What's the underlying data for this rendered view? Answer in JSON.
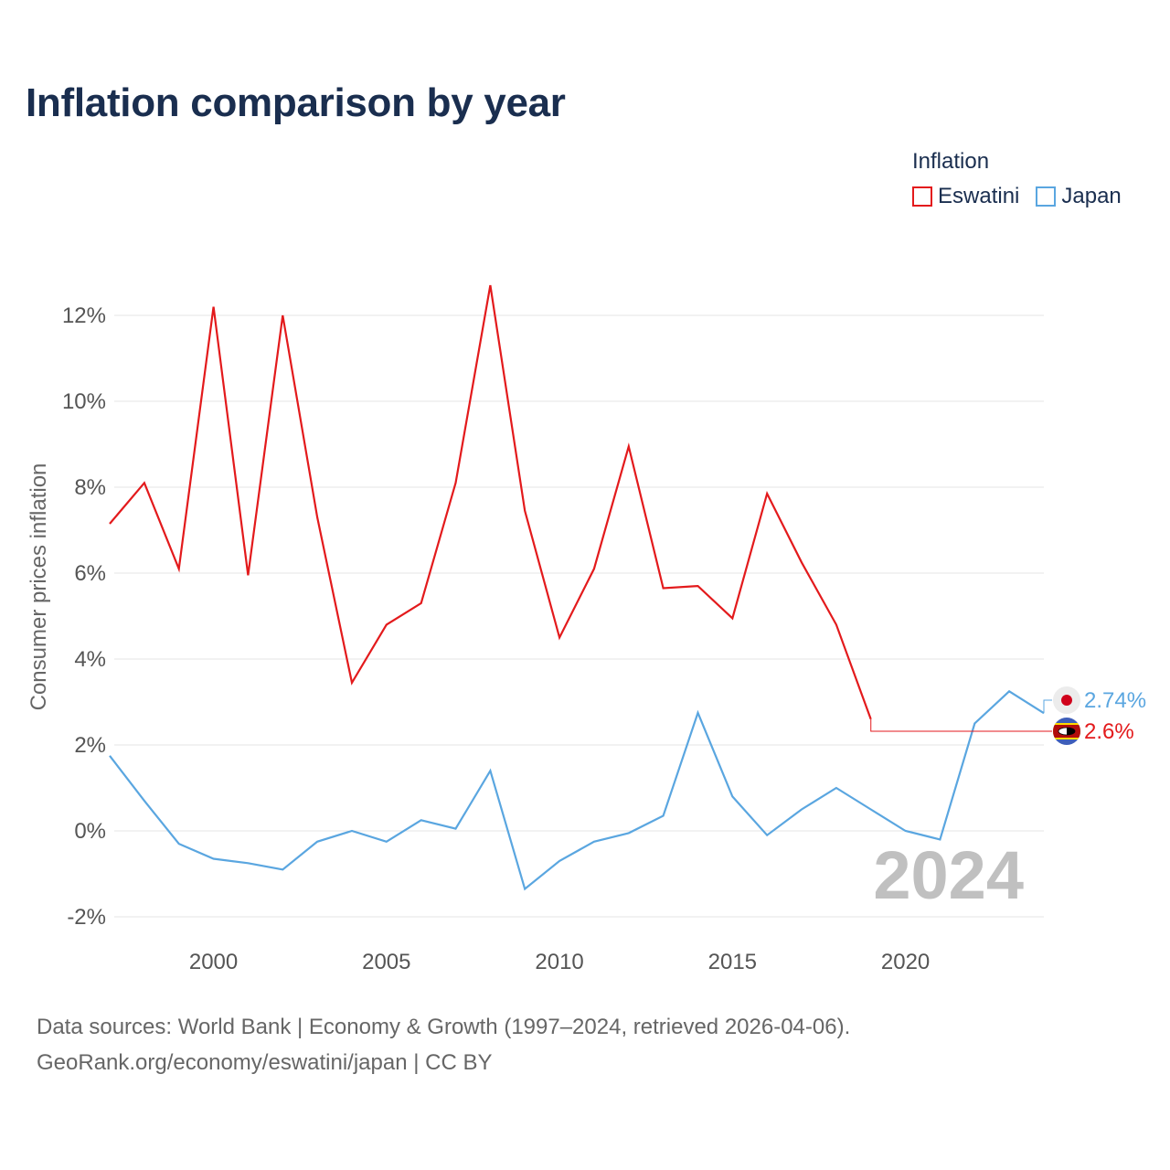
{
  "title": "Inflation comparison by year",
  "legend": {
    "title": "Inflation",
    "items": [
      {
        "label": "Eswatini",
        "color": "#e31a1c"
      },
      {
        "label": "Japan",
        "color": "#5aa6e0"
      }
    ]
  },
  "chart_data": {
    "type": "line",
    "title": "Inflation comparison by year",
    "xlabel": "",
    "ylabel": "Consumer prices inflation",
    "xlim": [
      1997,
      2024
    ],
    "ylim": [
      -2.3,
      13.5
    ],
    "x_ticks": [
      2000,
      2005,
      2010,
      2015,
      2020
    ],
    "y_ticks": [
      -2,
      0,
      2,
      4,
      6,
      8,
      10,
      12
    ],
    "y_tick_labels": [
      "-2%",
      "0%",
      "2%",
      "4%",
      "6%",
      "8%",
      "10%",
      "12%"
    ],
    "year_watermark": "2024",
    "series": [
      {
        "name": "Eswatini",
        "color": "#e31a1c",
        "x": [
          1997,
          1998,
          1999,
          2000,
          2001,
          2002,
          2003,
          2004,
          2005,
          2006,
          2007,
          2008,
          2009,
          2010,
          2011,
          2012,
          2013,
          2014,
          2015,
          2016,
          2017,
          2018,
          2019
        ],
        "values": [
          7.15,
          8.1,
          6.1,
          12.2,
          5.95,
          12.0,
          7.3,
          3.45,
          4.8,
          5.3,
          8.1,
          12.7,
          7.45,
          4.5,
          6.1,
          8.95,
          5.65,
          5.7,
          4.95,
          7.85,
          6.25,
          4.8,
          2.6
        ],
        "end_value": 2.6,
        "end_label": "2.6%"
      },
      {
        "name": "Japan",
        "color": "#5aa6e0",
        "x": [
          1997,
          1998,
          1999,
          2000,
          2001,
          2002,
          2003,
          2004,
          2005,
          2006,
          2007,
          2008,
          2009,
          2010,
          2011,
          2012,
          2013,
          2014,
          2015,
          2016,
          2017,
          2018,
          2019,
          2020,
          2021,
          2022,
          2023,
          2024
        ],
        "values": [
          1.75,
          0.7,
          -0.3,
          -0.65,
          -0.75,
          -0.9,
          -0.25,
          0.0,
          -0.25,
          0.25,
          0.05,
          1.4,
          -1.35,
          -0.7,
          -0.25,
          -0.05,
          0.35,
          2.75,
          0.8,
          -0.1,
          0.5,
          1.0,
          0.5,
          0.0,
          -0.2,
          2.5,
          3.25,
          2.74
        ],
        "end_value": 2.74,
        "end_label": "2.74%"
      }
    ]
  },
  "footer": {
    "line1": "Data sources: World Bank | Economy & Growth (1997–2024, retrieved 2026-04-06).",
    "line2": "GeoRank.org/economy/eswatini/japan | CC BY"
  }
}
